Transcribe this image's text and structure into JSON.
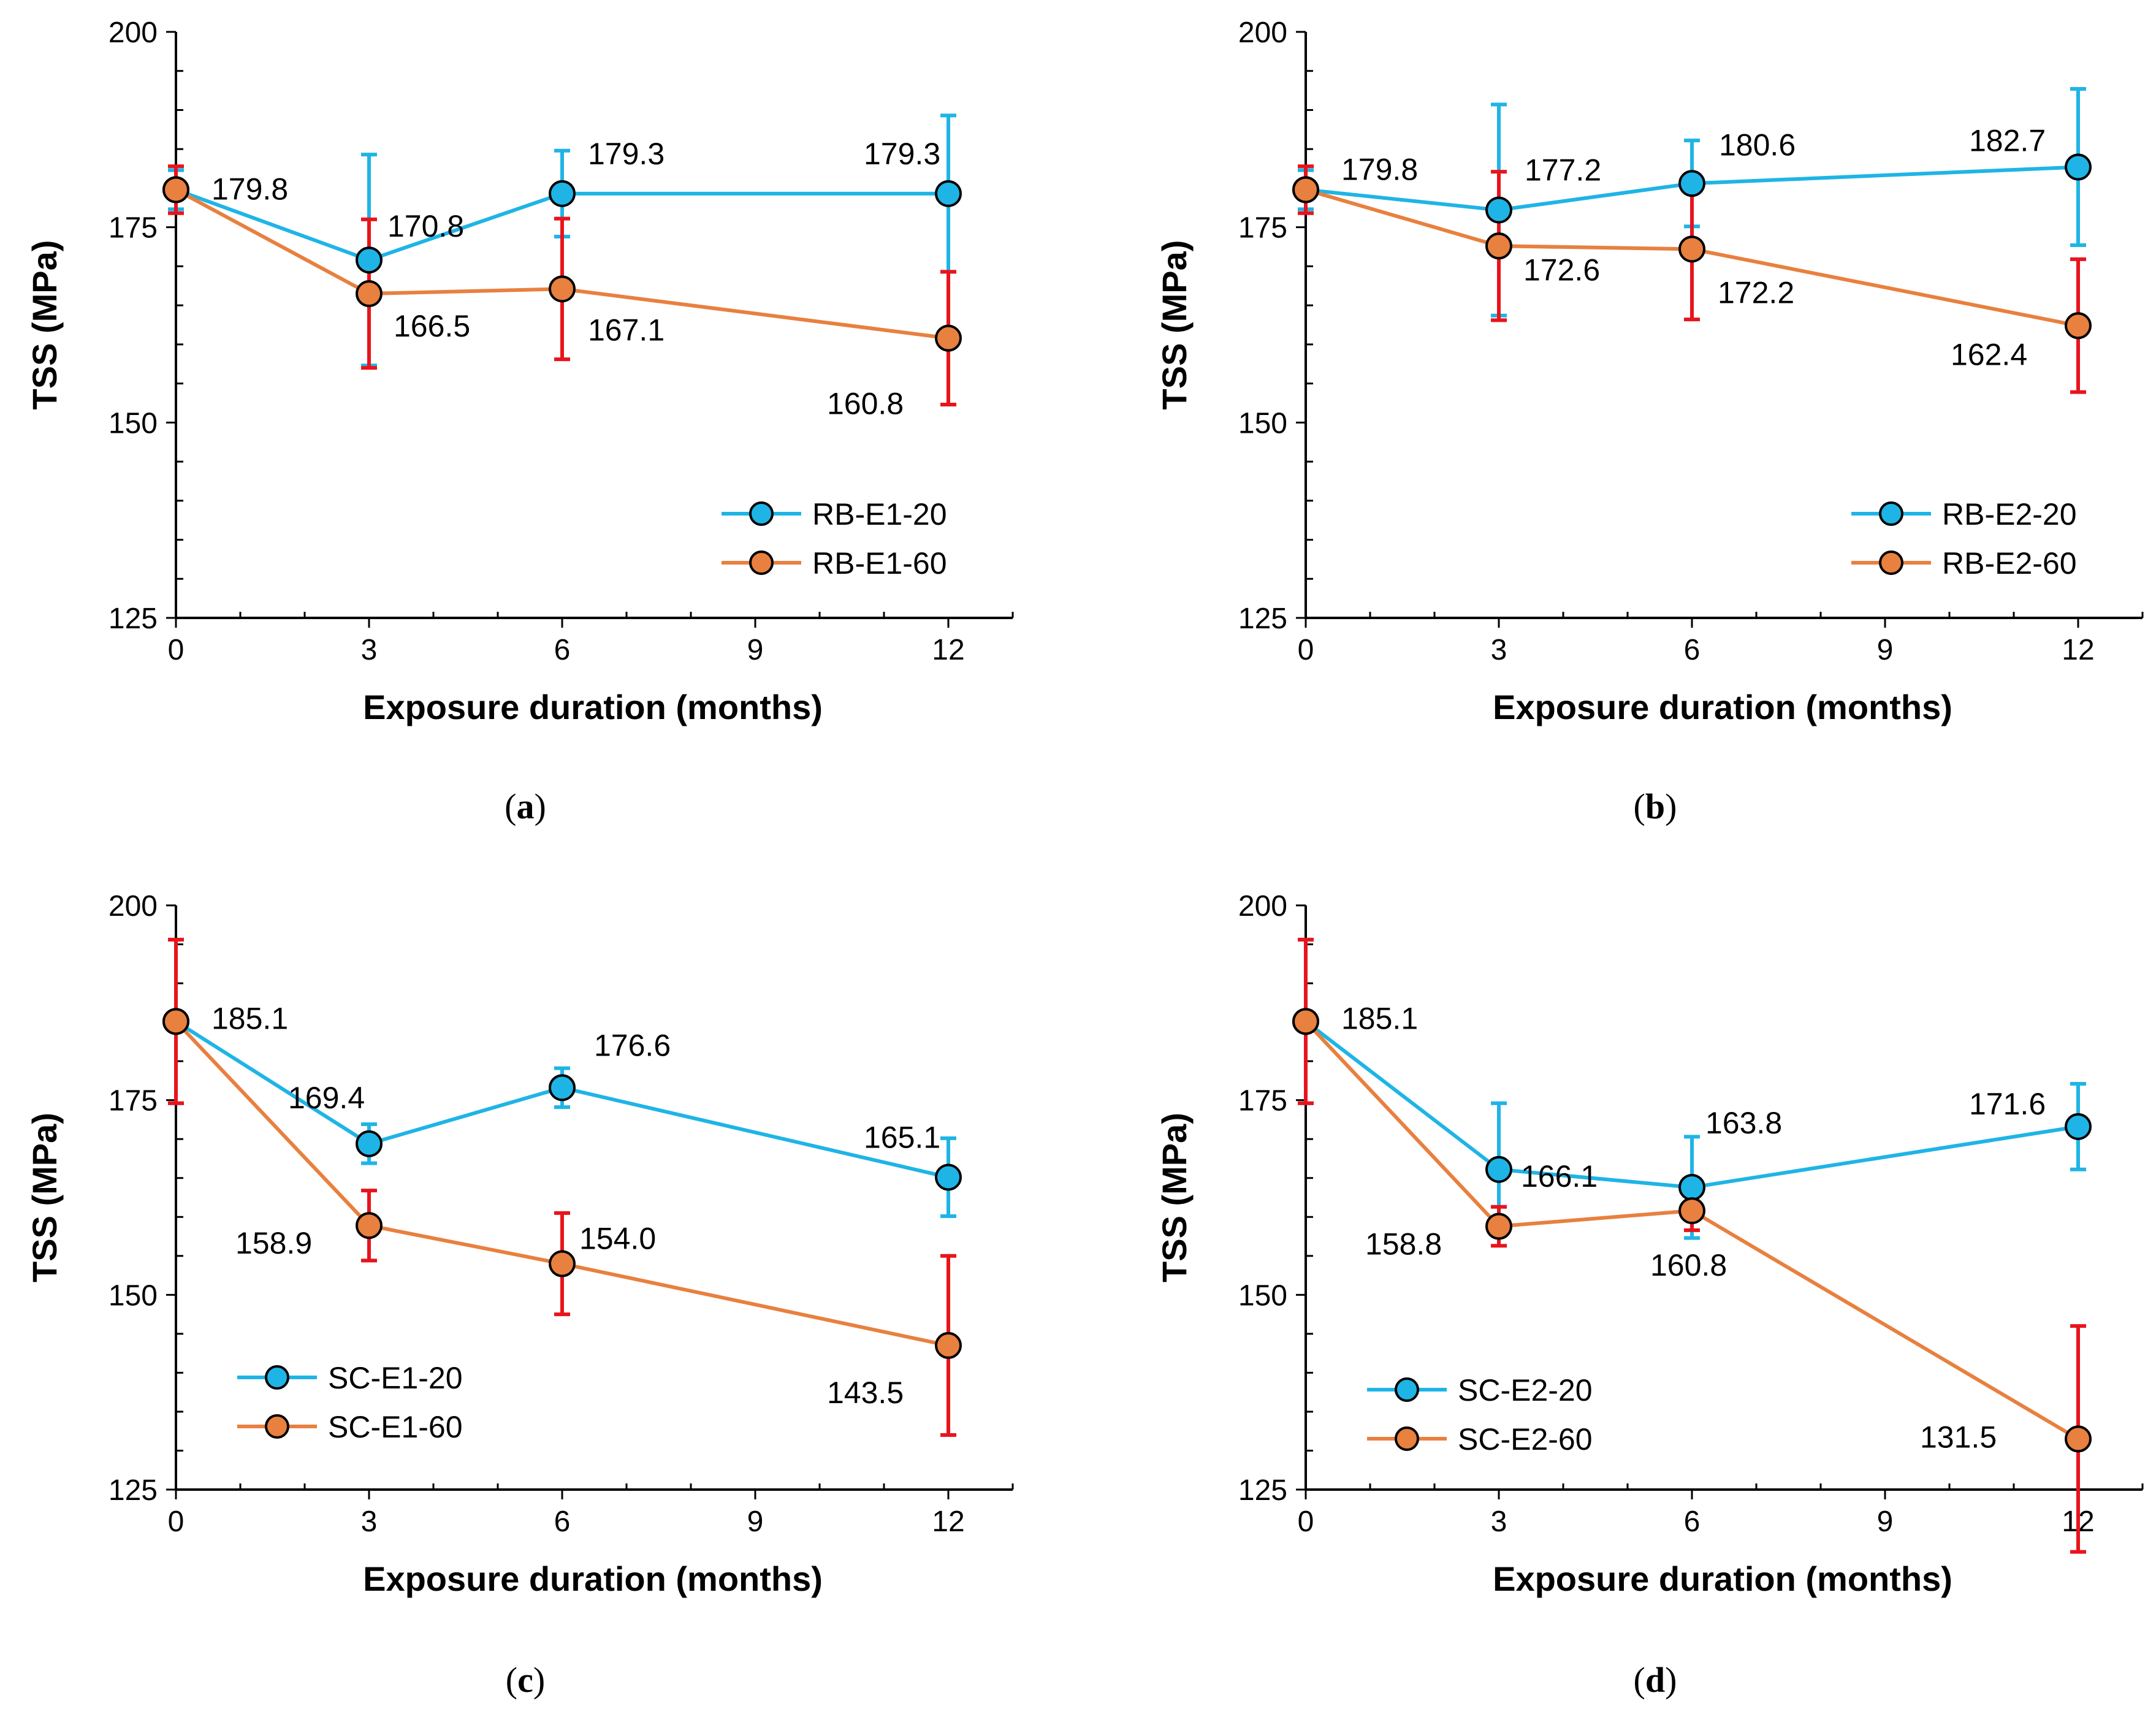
{
  "colors": {
    "series_20": "#1fb4e6",
    "series_60": "#e8803f",
    "error_20": "#1fb4e6",
    "error_60": "#e8141c",
    "axis": "#000000",
    "marker_edge": "#000000"
  },
  "chart_data": [
    {
      "type": "line",
      "caption_letter": "a",
      "xlabel": "Exposure duration (months)",
      "ylabel": "TSS (MPa)",
      "xlim": [
        0,
        13
      ],
      "ylim": [
        125,
        200
      ],
      "xticks": [
        0,
        3,
        6,
        9,
        12
      ],
      "yticks": [
        125,
        150,
        175,
        200
      ],
      "legend_position": "bottom-right",
      "series": [
        {
          "name": "RB-E1-20",
          "color_key": "series_20",
          "error_color_key": "error_20",
          "x": [
            0,
            3,
            6,
            12
          ],
          "values": [
            179.8,
            170.8,
            179.3,
            179.3
          ],
          "errors": [
            2.5,
            13.5,
            5.5,
            10.0
          ],
          "labels": [
            "179.8",
            "170.8",
            "179.3",
            "179.3"
          ]
        },
        {
          "name": "RB-E1-60",
          "color_key": "series_60",
          "error_color_key": "error_60",
          "x": [
            0,
            3,
            6,
            12
          ],
          "values": [
            179.8,
            166.5,
            167.1,
            160.8
          ],
          "errors": [
            3.0,
            9.5,
            9.0,
            8.5
          ],
          "labels": [
            "",
            "166.5",
            "167.1",
            "160.8"
          ]
        }
      ]
    },
    {
      "type": "line",
      "caption_letter": "b",
      "xlabel": "Exposure duration (months)",
      "ylabel": "TSS (MPa)",
      "xlim": [
        0,
        13
      ],
      "ylim": [
        125,
        200
      ],
      "xticks": [
        0,
        3,
        6,
        9,
        12
      ],
      "yticks": [
        125,
        150,
        175,
        200
      ],
      "legend_position": "bottom-right",
      "series": [
        {
          "name": "RB-E2-20",
          "color_key": "series_20",
          "error_color_key": "error_20",
          "x": [
            0,
            3,
            6,
            12
          ],
          "values": [
            179.8,
            177.2,
            180.6,
            182.7
          ],
          "errors": [
            2.5,
            13.5,
            5.5,
            10.0
          ],
          "labels": [
            "179.8",
            "177.2",
            "180.6",
            "182.7"
          ]
        },
        {
          "name": "RB-E2-60",
          "color_key": "series_60",
          "error_color_key": "error_60",
          "x": [
            0,
            3,
            6,
            12
          ],
          "values": [
            179.8,
            172.6,
            172.2,
            162.4
          ],
          "errors": [
            3.0,
            9.5,
            9.0,
            8.5
          ],
          "labels": [
            "",
            "172.6",
            "172.2",
            "162.4"
          ]
        }
      ]
    },
    {
      "type": "line",
      "caption_letter": "c",
      "xlabel": "Exposure duration (months)",
      "ylabel": "TSS (MPa)",
      "xlim": [
        0,
        13
      ],
      "ylim": [
        125,
        200
      ],
      "xticks": [
        0,
        3,
        6,
        9,
        12
      ],
      "yticks": [
        125,
        150,
        175,
        200
      ],
      "legend_position": "bottom-left",
      "series": [
        {
          "name": "SC-E1-20",
          "color_key": "series_20",
          "error_color_key": "error_20",
          "x": [
            0,
            3,
            6,
            12
          ],
          "values": [
            185.1,
            169.4,
            176.6,
            165.1
          ],
          "errors": [
            10.5,
            2.5,
            2.5,
            5.0
          ],
          "labels": [
            "185.1",
            "169.4",
            "176.6",
            "165.1"
          ]
        },
        {
          "name": "SC-E1-60",
          "color_key": "series_60",
          "error_color_key": "error_60",
          "x": [
            0,
            3,
            6,
            12
          ],
          "values": [
            185.1,
            158.9,
            154.0,
            143.5
          ],
          "errors": [
            10.5,
            4.5,
            6.5,
            11.5
          ],
          "labels": [
            "",
            "158.9",
            "154.0",
            "143.5"
          ]
        }
      ]
    },
    {
      "type": "line",
      "caption_letter": "d",
      "xlabel": "Exposure duration (months)",
      "ylabel": "TSS (MPa)",
      "xlim": [
        0,
        13
      ],
      "ylim": [
        125,
        200
      ],
      "xticks": [
        0,
        3,
        6,
        9,
        12
      ],
      "yticks": [
        125,
        150,
        175,
        200
      ],
      "legend_position": "bottom-left",
      "series": [
        {
          "name": "SC-E2-20",
          "color_key": "series_20",
          "error_color_key": "error_20",
          "x": [
            0,
            3,
            6,
            12
          ],
          "values": [
            185.1,
            166.1,
            163.8,
            171.6
          ],
          "errors": [
            10.5,
            8.5,
            6.5,
            5.5
          ],
          "labels": [
            "185.1",
            "166.1",
            "163.8",
            "171.6"
          ]
        },
        {
          "name": "SC-E2-60",
          "color_key": "series_60",
          "error_color_key": "error_60",
          "x": [
            0,
            3,
            6,
            12
          ],
          "values": [
            185.1,
            158.8,
            160.8,
            131.5
          ],
          "errors": [
            10.5,
            2.5,
            2.5,
            14.5
          ],
          "labels": [
            "",
            "158.8",
            "160.8",
            "131.5"
          ]
        }
      ]
    }
  ]
}
